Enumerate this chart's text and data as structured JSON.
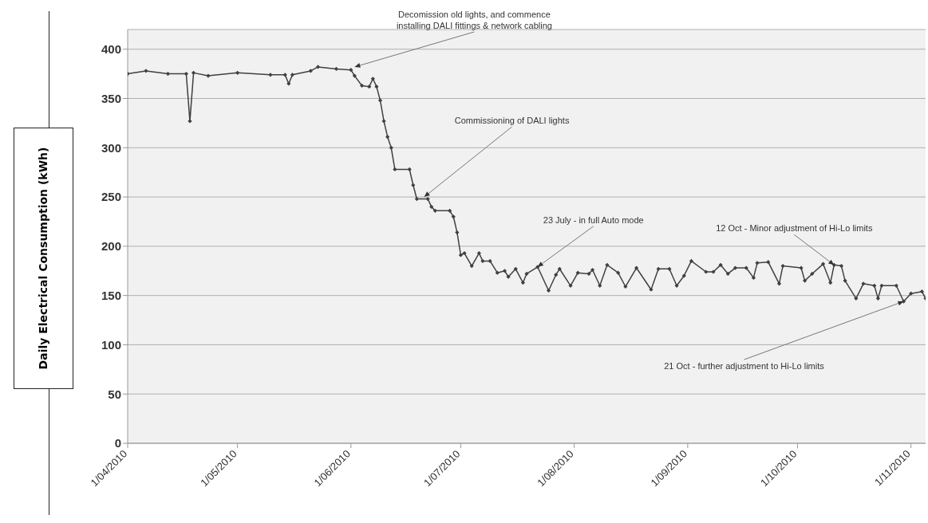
{
  "chart_data": {
    "type": "line",
    "ylabel": "Daily Electrical Consumption (kWh)",
    "x": [
      "2010-04-01",
      "2010-04-06",
      "2010-04-12",
      "2010-04-17",
      "2010-04-18",
      "2010-04-19",
      "2010-04-23",
      "2010-05-01",
      "2010-05-10",
      "2010-05-14",
      "2010-05-15",
      "2010-05-16",
      "2010-05-21",
      "2010-05-23",
      "2010-05-28",
      "2010-06-01",
      "2010-06-02",
      "2010-06-04",
      "2010-06-06",
      "2010-06-07",
      "2010-06-08",
      "2010-06-09",
      "2010-06-10",
      "2010-06-11",
      "2010-06-12",
      "2010-06-13",
      "2010-06-17",
      "2010-06-18",
      "2010-06-19",
      "2010-06-22",
      "2010-06-23",
      "2010-06-24",
      "2010-06-28",
      "2010-06-29",
      "2010-06-30",
      "2010-07-01",
      "2010-07-02",
      "2010-07-04",
      "2010-07-06",
      "2010-07-07",
      "2010-07-09",
      "2010-07-11",
      "2010-07-13",
      "2010-07-14",
      "2010-07-16",
      "2010-07-18",
      "2010-07-19",
      "2010-07-22",
      "2010-07-25",
      "2010-07-27",
      "2010-07-28",
      "2010-07-31",
      "2010-08-02",
      "2010-08-05",
      "2010-08-06",
      "2010-08-08",
      "2010-08-10",
      "2010-08-13",
      "2010-08-15",
      "2010-08-18",
      "2010-08-22",
      "2010-08-24",
      "2010-08-27",
      "2010-08-29",
      "2010-08-31",
      "2010-09-02",
      "2010-09-06",
      "2010-09-08",
      "2010-09-10",
      "2010-09-12",
      "2010-09-14",
      "2010-09-17",
      "2010-09-19",
      "2010-09-20",
      "2010-09-23",
      "2010-09-26",
      "2010-09-27",
      "2010-10-02",
      "2010-10-03",
      "2010-10-05",
      "2010-10-08",
      "2010-10-10",
      "2010-10-11",
      "2010-10-13",
      "2010-10-14",
      "2010-10-17",
      "2010-10-19",
      "2010-10-22",
      "2010-10-23",
      "2010-10-24",
      "2010-10-28",
      "2010-10-30",
      "2010-11-01",
      "2010-11-04",
      "2010-11-05"
    ],
    "series": [
      {
        "color": "#404040",
        "values": [
          375,
          378,
          375,
          375,
          327,
          376,
          373,
          376,
          374,
          374,
          365,
          374,
          378,
          382,
          380,
          379,
          373,
          363,
          362,
          370,
          362,
          348,
          327,
          311,
          300,
          278,
          278,
          262,
          248,
          248,
          240,
          236,
          236,
          230,
          214,
          191,
          193,
          180,
          193,
          185,
          185,
          173,
          175,
          169,
          177,
          163,
          172,
          179,
          155,
          171,
          177,
          160,
          173,
          172,
          176,
          160,
          181,
          173,
          159,
          178,
          156,
          177,
          177,
          160,
          170,
          185,
          174,
          174,
          181,
          172,
          178,
          178,
          168,
          183,
          184,
          162,
          180,
          178,
          165,
          172,
          182,
          163,
          181,
          180,
          165,
          147,
          162,
          160,
          147,
          160,
          160,
          144,
          152,
          154,
          147
        ]
      }
    ],
    "xlim": [
      "2010-04-01",
      "2010-11-05"
    ],
    "xticks": [
      {
        "value": "2010-04-01",
        "label": "1/04/2010"
      },
      {
        "value": "2010-05-01",
        "label": "1/05/2010"
      },
      {
        "value": "2010-06-01",
        "label": "1/06/2010"
      },
      {
        "value": "2010-07-01",
        "label": "1/07/2010"
      },
      {
        "value": "2010-08-01",
        "label": "1/08/2010"
      },
      {
        "value": "2010-09-01",
        "label": "1/09/2010"
      },
      {
        "value": "2010-10-01",
        "label": "1/10/2010"
      },
      {
        "value": "2010-11-01",
        "label": "1/11/2010"
      }
    ],
    "ylim": [
      0,
      420
    ],
    "yticks": [
      0,
      50,
      100,
      150,
      200,
      250,
      300,
      350,
      400
    ],
    "grid": "y",
    "marker": "diamond",
    "line_style": "solid",
    "annotations": [
      {
        "text": "Decomission old lights, and commence installing DALI fittings & network cabling",
        "x": "2010-06-02",
        "y": 382
      },
      {
        "text": "Commissioning of DALI lights",
        "x": "2010-06-21",
        "y": 250
      },
      {
        "text": "23 July - in full Auto mode",
        "x": "2010-07-22",
        "y": 179
      },
      {
        "text": "12 Oct - Minor adjustment of Hi-Lo limits",
        "x": "2010-10-11",
        "y": 181
      },
      {
        "text": "21 Oct - further adjustment to Hi-Lo limits",
        "x": "2010-10-30",
        "y": 144
      }
    ]
  }
}
